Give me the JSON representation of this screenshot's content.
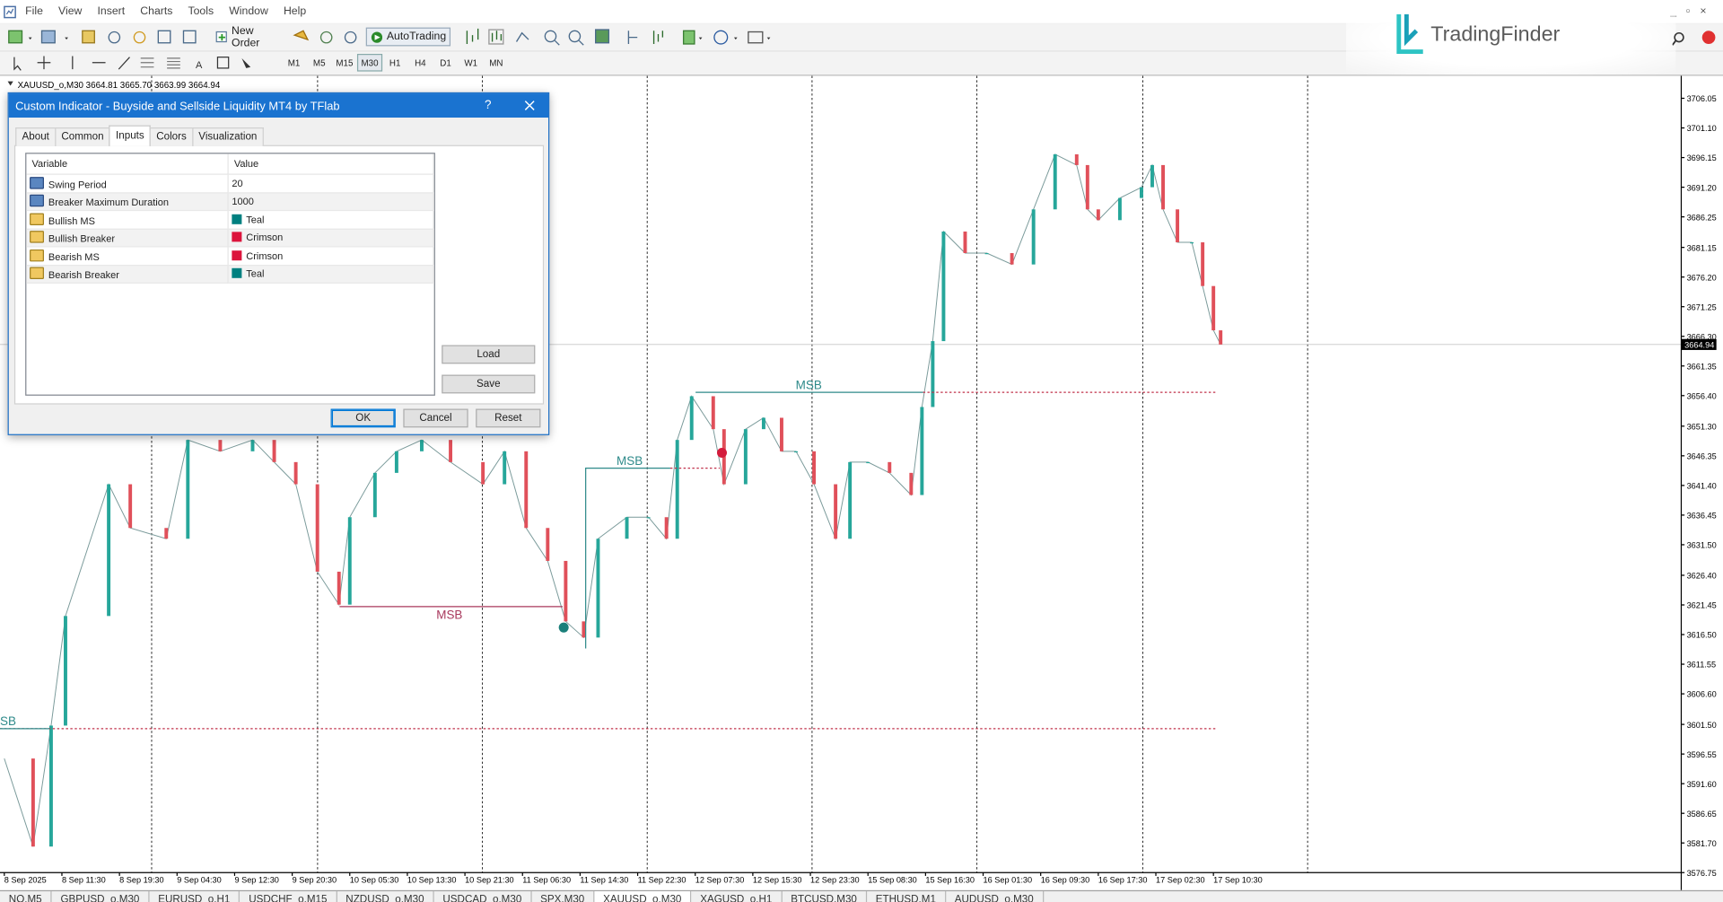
{
  "menu": [
    "File",
    "View",
    "Insert",
    "Charts",
    "Tools",
    "Window",
    "Help"
  ],
  "toolbar": {
    "new_order": "New Order",
    "auto_trading": "AutoTrading",
    "timeframes": [
      "M1",
      "M5",
      "M15",
      "M30",
      "H1",
      "H4",
      "D1",
      "W1",
      "MN"
    ]
  },
  "brand": "TradingFinder",
  "chart_data": {
    "type": "candlestick",
    "title": "XAUUSD_o,M30  3664.81 3665.70 3663.99 3664.94",
    "x": [
      0,
      8,
      13,
      17,
      29,
      35,
      45,
      51,
      60,
      69,
      75,
      81,
      87,
      93,
      96,
      103,
      109,
      116,
      124,
      133,
      139,
      145,
      151,
      156,
      161,
      165,
      173,
      179,
      184,
      187,
      191,
      197,
      200,
      206,
      211,
      216,
      220,
      225,
      231,
      235,
      240,
      246,
      252,
      255,
      258,
      261,
      267,
      273,
      280,
      286,
      292,
      298,
      301,
      304,
      310,
      316,
      319,
      322,
      326,
      330,
      333,
      336,
      338
    ],
    "values": [
      3595.8,
      3581.1,
      3601.3,
      3619.6,
      3641.6,
      3634.3,
      3632.5,
      3649.0,
      3647.1,
      3649.0,
      3645.3,
      3641.6,
      3627.0,
      3621.5,
      3636.1,
      3643.5,
      3647.1,
      3649.0,
      3645.3,
      3641.6,
      3647.1,
      3634.3,
      3628.8,
      3618.7,
      3616.0,
      3632.5,
      3636.1,
      3636.1,
      3632.5,
      3649.0,
      3656.3,
      3650.8,
      3641.6,
      3650.8,
      3652.7,
      3647.1,
      3647.1,
      3641.6,
      3632.5,
      3645.3,
      3645.3,
      3643.5,
      3639.8,
      3654.5,
      3665.5,
      3683.8,
      3680.2,
      3680.2,
      3678.3,
      3687.5,
      3696.7,
      3694.9,
      3687.5,
      3685.7,
      3689.4,
      3691.2,
      3694.9,
      3687.5,
      3682.0,
      3682.0,
      3674.7,
      3667.3,
      3664.94
    ],
    "up_color": "#26a69a",
    "down_color": "#e0505a",
    "current_price": 3664.94,
    "xlim": [
      -1.2,
      466
    ],
    "xticks": [
      {
        "value": 0,
        "label": "8 Sep 2025"
      },
      {
        "value": 16,
        "label": "8 Sep 11:30"
      },
      {
        "value": 32,
        "label": "8 Sep 19:30"
      },
      {
        "value": 48,
        "label": "9 Sep 04:30"
      },
      {
        "value": 64,
        "label": "9 Sep 12:30"
      },
      {
        "value": 80,
        "label": "9 Sep 20:30"
      },
      {
        "value": 96,
        "label": "10 Sep 05:30"
      },
      {
        "value": 112,
        "label": "10 Sep 13:30"
      },
      {
        "value": 128,
        "label": "10 Sep 21:30"
      },
      {
        "value": 144,
        "label": "11 Sep 06:30"
      },
      {
        "value": 160,
        "label": "11 Sep 14:30"
      },
      {
        "value": 176,
        "label": "11 Sep 22:30"
      },
      {
        "value": 192,
        "label": "12 Sep 07:30"
      },
      {
        "value": 208,
        "label": "12 Sep 15:30"
      },
      {
        "value": 224,
        "label": "12 Sep 23:30"
      },
      {
        "value": 240,
        "label": "15 Sep 08:30"
      },
      {
        "value": 256,
        "label": "15 Sep 16:30"
      },
      {
        "value": 272,
        "label": "16 Sep 01:30"
      },
      {
        "value": 288,
        "label": "16 Sep 09:30"
      },
      {
        "value": 304,
        "label": "16 Sep 17:30"
      },
      {
        "value": 320,
        "label": "17 Sep 02:30"
      },
      {
        "value": 336,
        "label": "17 Sep 10:30"
      }
    ],
    "ylim": [
      3576.75,
      3709.8
    ],
    "yticks": [
      3706.05,
      {
        "value": 3701.1,
        "label": "3701.10"
      },
      3696.15,
      {
        "value": 3691.2,
        "label": "3691.20"
      },
      3686.25,
      3681.15,
      {
        "value": 3676.2,
        "label": "3676.20"
      },
      3671.25,
      {
        "value": 3666.3,
        "label": "3666.30"
      },
      3661.35,
      {
        "value": 3656.4,
        "label": "3656.40"
      },
      {
        "value": 3651.3,
        "label": "3651.30"
      },
      3646.35,
      {
        "value": 3641.4,
        "label": "3641.40"
      },
      3636.45,
      {
        "value": 3631.5,
        "label": "3631.50"
      },
      {
        "value": 3626.4,
        "label": "3626.40"
      },
      3621.45,
      {
        "value": 3616.5,
        "label": "3616.50"
      },
      3611.55,
      {
        "value": 3606.6,
        "label": "3606.60"
      },
      {
        "value": 3601.5,
        "label": "3601.50"
      },
      3596.55,
      {
        "value": 3591.6,
        "label": "3591.60"
      },
      3586.65,
      {
        "value": 3581.7,
        "label": "3581.70"
      },
      3576.75
    ],
    "annotations": [
      "MSB",
      "MSB",
      "MSB",
      "SB"
    ]
  },
  "dialog": {
    "title": "Custom Indicator - Buyside and Sellside Liquidity MT4 by TFlab",
    "help": "?",
    "tabs": [
      "About",
      "Common",
      "Inputs",
      "Colors",
      "Visualization"
    ],
    "table": {
      "header": [
        "Variable",
        "Value"
      ],
      "rows": [
        {
          "name": "Swing Period",
          "value": 20
        },
        {
          "name": "Breaker Maximum Duration",
          "value": 1000
        },
        {
          "name": "Bullish MS",
          "value": "Teal",
          "color": "#008080"
        },
        {
          "name": "Bullish Breaker",
          "value": "Crimson",
          "color": "#dc143c"
        },
        {
          "name": "Bearish MS",
          "value": "Crimson",
          "color": "#dc143c"
        },
        {
          "name": "Bearish Breaker",
          "value": "Teal",
          "color": "#008080"
        }
      ]
    },
    "buttons": {
      "load": "Load",
      "save": "Save",
      "ok": "OK",
      "cancel": "Cancel",
      "reset": "Reset"
    }
  },
  "tabs": [
    "NO,M5",
    "GBPUSD_o,M30",
    "EURUSD_o,H1",
    "USDCHF_o,M15",
    "NZDUSD_o,M30",
    "USDCAD_o,M30",
    "SPX,M30",
    "XAUUSD_o,M30",
    "XAGUSD_o,H1",
    "BTCUSD,M30",
    "ETHUSD,M1",
    "AUDUSD_o,M30"
  ],
  "active_tab": 7
}
